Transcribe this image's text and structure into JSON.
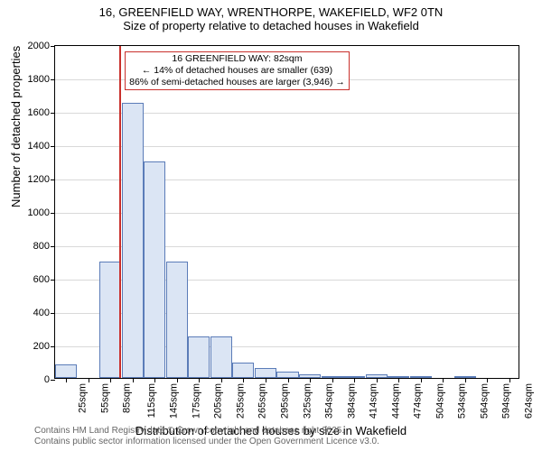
{
  "title": {
    "line1": "16, GREENFIELD WAY, WRENTHORPE, WAKEFIELD, WF2 0TN",
    "line2": "Size of property relative to detached houses in Wakefield"
  },
  "chart": {
    "type": "histogram",
    "ylabel": "Number of detached properties",
    "xlabel": "Distribution of detached houses by size in Wakefield",
    "ylim": [
      0,
      2000
    ],
    "ytick_step": 200,
    "background_color": "#ffffff",
    "grid_color": "#d0d0d0",
    "bar_fill": "#dbe5f4",
    "bar_border": "#5b7cb8",
    "marker_color": "#c9302c",
    "annotation_border": "#c9302c",
    "label_fontsize": 13,
    "tick_fontsize": 11,
    "x_categories": [
      "25sqm",
      "55sqm",
      "85sqm",
      "115sqm",
      "145sqm",
      "175sqm",
      "205sqm",
      "235sqm",
      "265sqm",
      "295sqm",
      "325sqm",
      "354sqm",
      "384sqm",
      "414sqm",
      "444sqm",
      "474sqm",
      "504sqm",
      "534sqm",
      "564sqm",
      "594sqm",
      "624sqm"
    ],
    "values": [
      80,
      0,
      700,
      1650,
      1300,
      700,
      250,
      250,
      90,
      60,
      40,
      20,
      10,
      10,
      20,
      5,
      5,
      0,
      5,
      0,
      0
    ],
    "marker_bin_index": 2,
    "marker_fraction_in_bin": 0.9,
    "annotation": {
      "line1": "16 GREENFIELD WAY: 82sqm",
      "line2": "← 14% of detached houses are smaller (639)",
      "line3": "86% of semi-detached houses are larger (3,946) →"
    }
  },
  "footer": {
    "line1": "Contains HM Land Registry data © Crown copyright and database right 2025.",
    "line2": "Contains public sector information licensed under the Open Government Licence v3.0."
  }
}
